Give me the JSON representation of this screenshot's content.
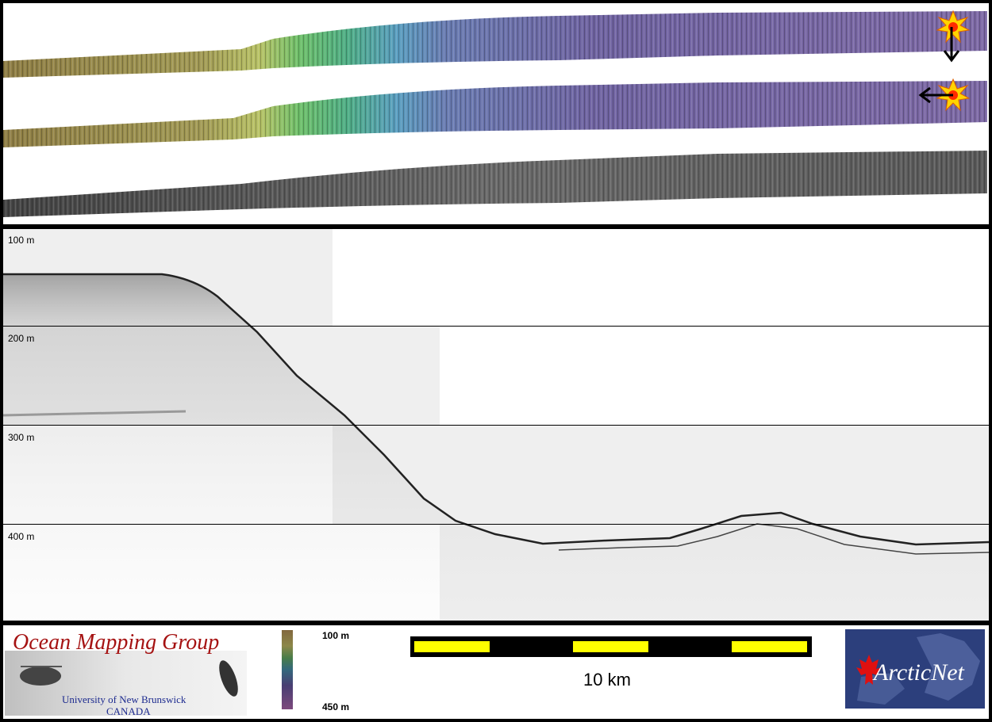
{
  "swaths": [
    {
      "name": "bathymetry-sun-north"
    },
    {
      "name": "bathymetry-sun-east"
    },
    {
      "name": "backscatter"
    }
  ],
  "depth_axis": {
    "labels": [
      "100 m",
      "200 m",
      "300 m",
      "400 m"
    ]
  },
  "footer": {
    "logo": {
      "title": "Ocean Mapping Group",
      "university": "University of New Brunswick",
      "country": "CANADA"
    },
    "colorbar": {
      "top_label": "100 m",
      "bottom_label": "450 m"
    },
    "scalebar": {
      "label": "10 km"
    },
    "partner_logo": {
      "name": "ArcticNet"
    }
  },
  "colors": {
    "logo_red": "#a51212",
    "logo_blue": "#1c2a8f",
    "scalebar_yellow": "#ffff00",
    "arcticnet_bg": "#2c3f7c"
  }
}
